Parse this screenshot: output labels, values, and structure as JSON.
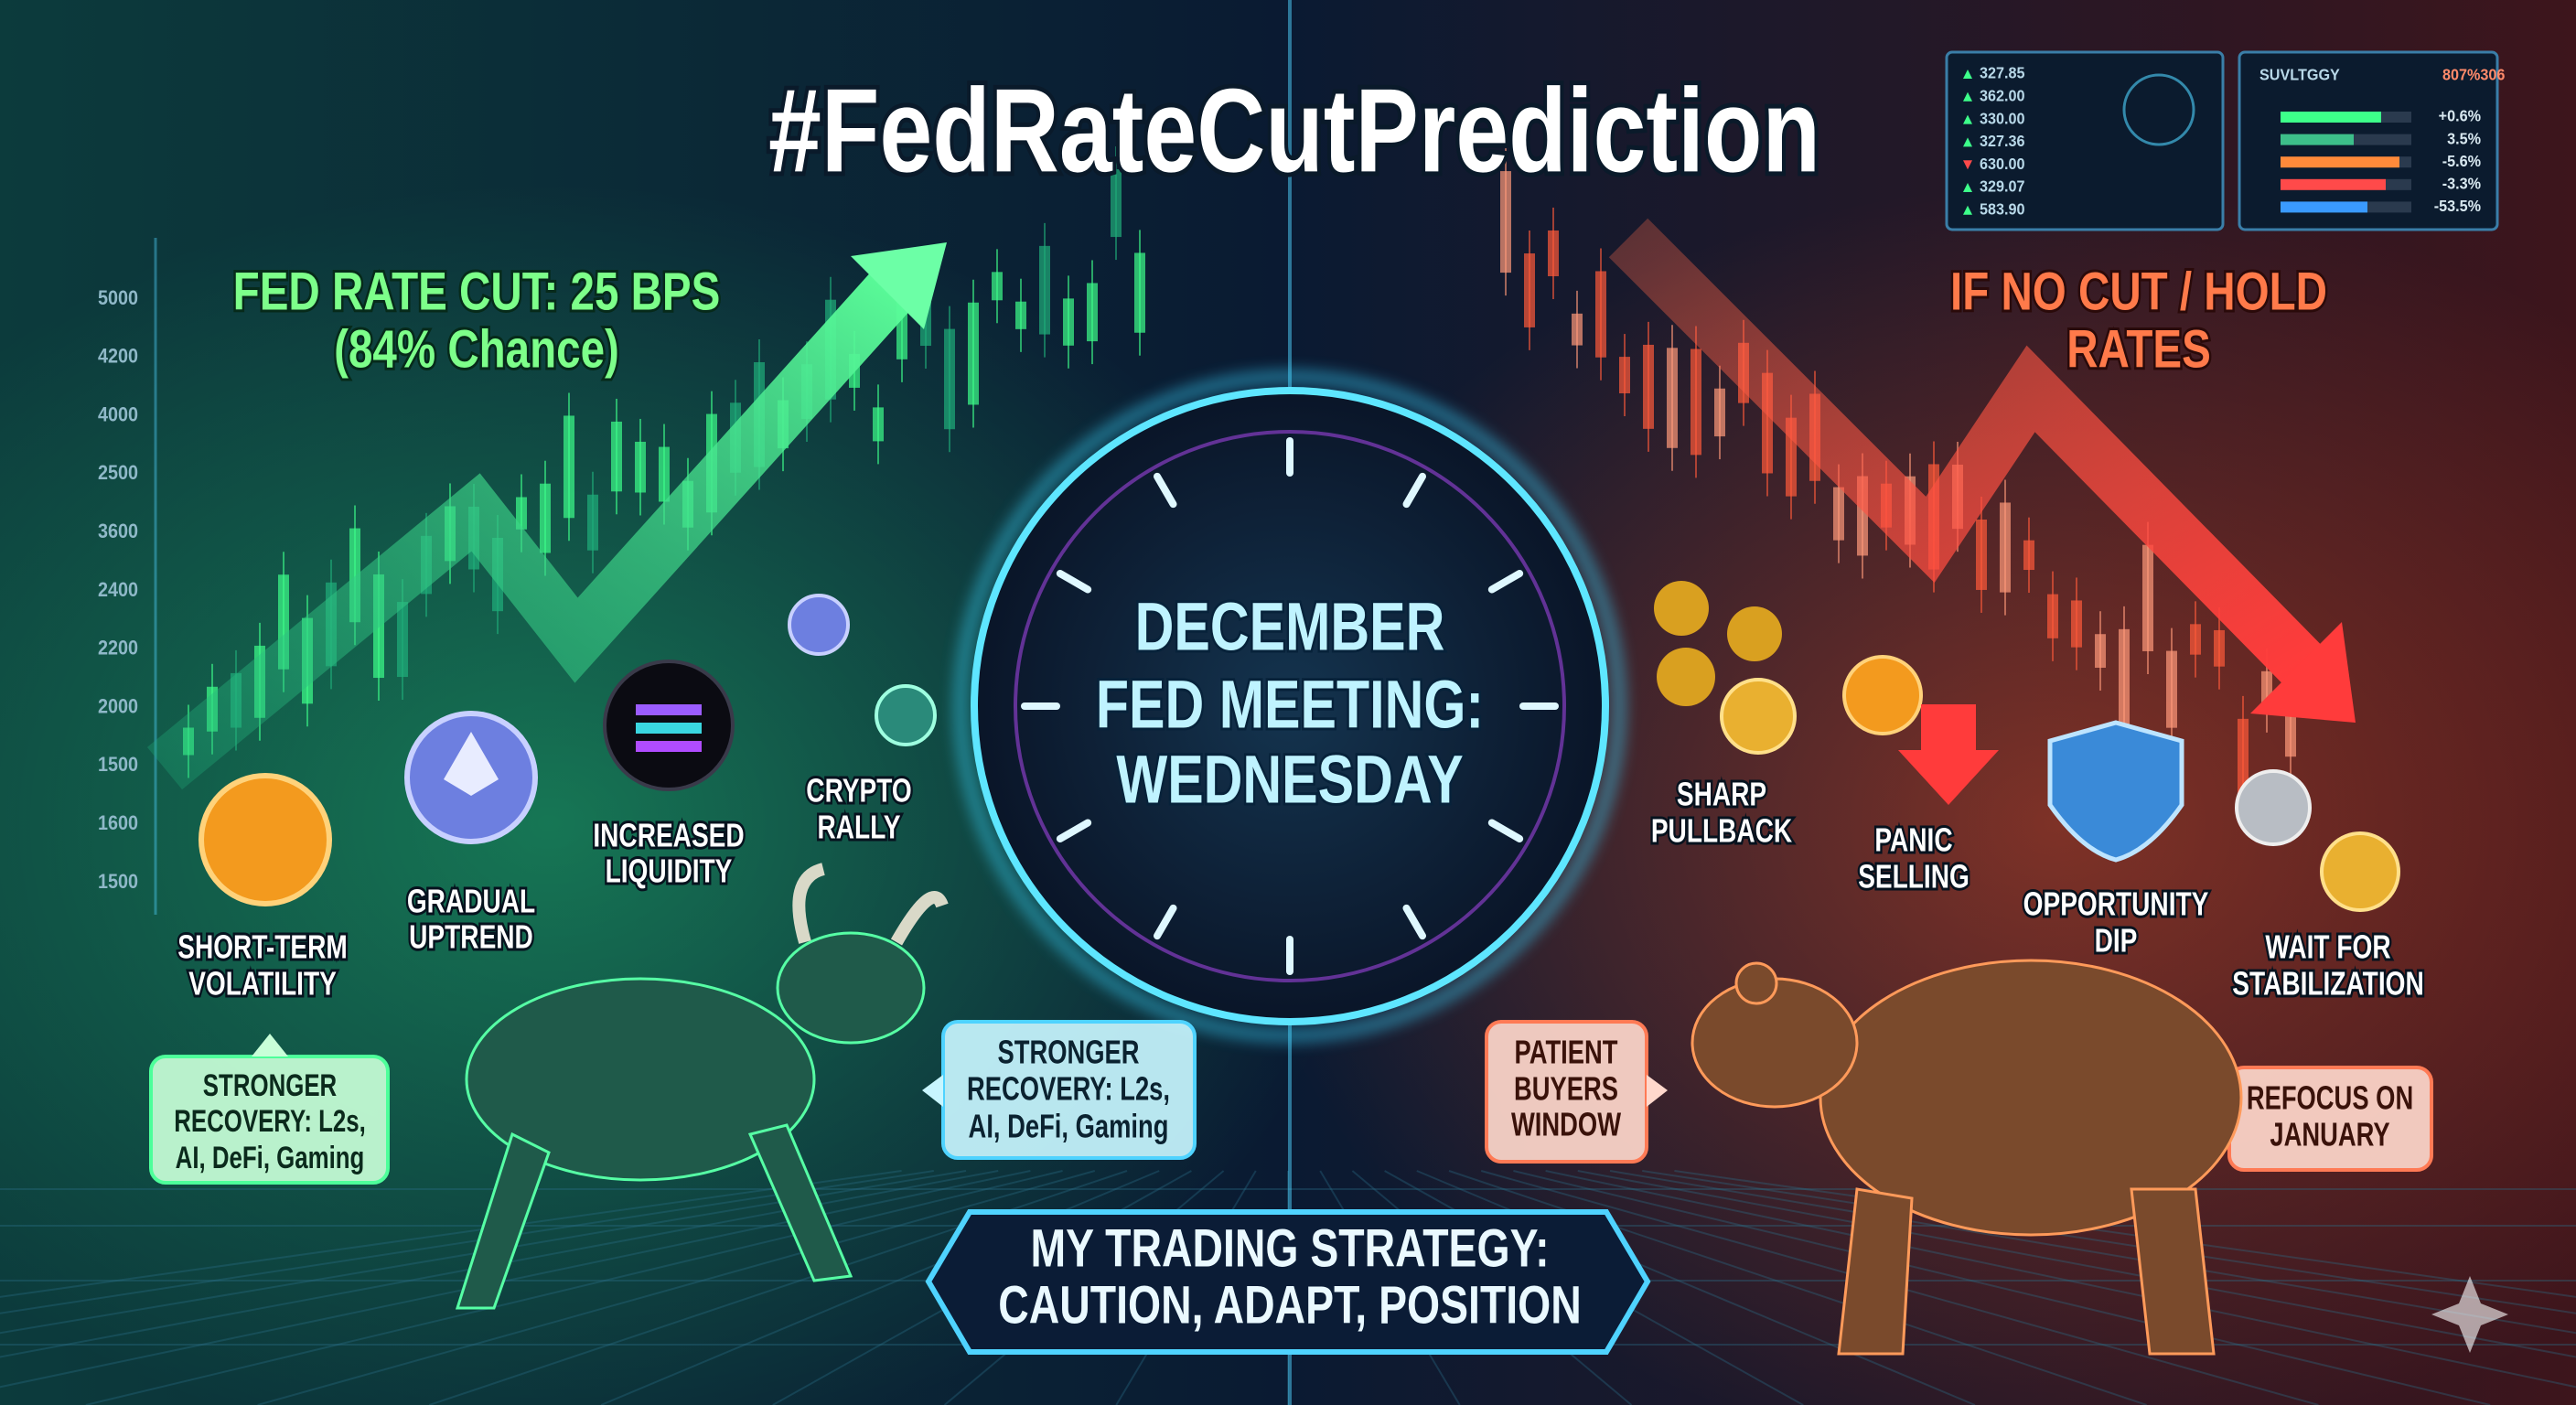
{
  "title": "#FedRateCutPrediction",
  "left": {
    "heading": [
      "FED RATE CUT: 25 BPS",
      "(84% Chance)"
    ],
    "labels": [
      [
        "SHORT-TERM",
        "VOLATILITY"
      ],
      [
        "GRADUAL",
        "UPTREND"
      ],
      [
        "INCREASED",
        "LIQUIDITY"
      ],
      [
        "CRYPTO",
        "RALLY"
      ]
    ],
    "callouts": [
      [
        "STRONGER",
        "RECOVERY: L2s,",
        "AI, DeFi, Gaming"
      ],
      [
        "STRONGER",
        "RECOVERY: L2s,",
        "AI, DeFi, Gaming"
      ]
    ]
  },
  "center": [
    "DECEMBER",
    "FED MEETING:",
    "WEDNESDAY"
  ],
  "right": {
    "heading": [
      "IF NO CUT / HOLD",
      "RATES"
    ],
    "labels": [
      [
        "SHARP",
        "PULLBACK"
      ],
      [
        "PANIC",
        "SELLING"
      ],
      [
        "OPPORTUNITY",
        "DIP"
      ],
      [
        "WAIT FOR",
        "STABILIZATION"
      ]
    ],
    "callouts": [
      [
        "PATIENT",
        "BUYERS",
        "WINDOW"
      ],
      [
        "REFOCUS ON",
        "JANUARY"
      ]
    ]
  },
  "strategy": [
    "MY TRADING STRATEGY:",
    "CAUTION, ADAPT, POSITION"
  ],
  "axis_labels": [
    5000,
    4200,
    4000,
    2500,
    3600,
    2400,
    2200,
    2000,
    1500,
    1600,
    1500
  ],
  "ticker": [
    "327.85",
    "362.00",
    "330.00",
    "327.36",
    "630.00",
    "329.07",
    "583.90"
  ],
  "summary": {
    "header": [
      "SUVLTGGY",
      "807%306"
    ],
    "rows": [
      "+0.6%",
      "3.5%",
      "-5.6%",
      "-3.3%",
      "-53.5%"
    ]
  }
}
